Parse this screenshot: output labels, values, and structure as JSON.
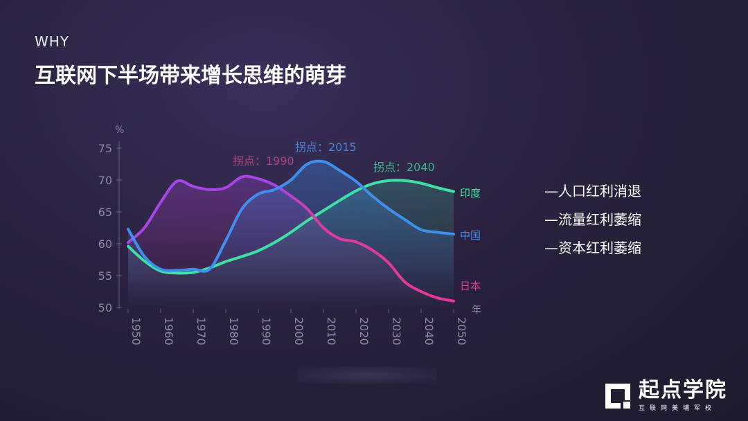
{
  "header": {
    "eyebrow": "WHY",
    "title": "互联网下半场带来增长思维的萌芽"
  },
  "bullets": [
    "—人口红利消退",
    "—流量红利萎缩",
    "—资本红利萎缩"
  ],
  "logo": {
    "main": "起点学院",
    "sub": "互联网美埔军校"
  },
  "colors": {
    "india": "#3fe0a5",
    "china": "#3f8fee",
    "japan": "#e13a9a",
    "japan_bump": "#a845e6",
    "axis": "#8d8aa6"
  },
  "chart_data": {
    "type": "line",
    "y_unit_label": "%",
    "x_unit_label": "年",
    "xlim": [
      1950,
      2050
    ],
    "ylim": [
      50,
      75
    ],
    "x_ticks": [
      "1950",
      "1960",
      "1970",
      "1980",
      "1990",
      "2000",
      "2010",
      "2020",
      "2030",
      "2040",
      "2050"
    ],
    "y_ticks": [
      "75",
      "70",
      "65",
      "60",
      "55",
      "50"
    ],
    "series": [
      {
        "name": "日本",
        "color": "#e13a9a",
        "x": [
          1950,
          1955,
          1960,
          1965,
          1970,
          1975,
          1980,
          1985,
          1990,
          1995,
          2000,
          2005,
          2010,
          2015,
          2020,
          2025,
          2030,
          2035,
          2040,
          2045,
          2050
        ],
        "y": [
          60.2,
          62.5,
          66.5,
          69.8,
          69.0,
          68.5,
          68.8,
          70.5,
          70.2,
          69.2,
          67.5,
          65.5,
          62.5,
          60.8,
          60.3,
          59.0,
          57.0,
          54.0,
          52.5,
          51.5,
          51.0
        ]
      },
      {
        "name": "中国",
        "color": "#3f8fee",
        "x": [
          1950,
          1955,
          1960,
          1965,
          1970,
          1975,
          1980,
          1985,
          1990,
          1995,
          2000,
          2005,
          2010,
          2015,
          2020,
          2025,
          2030,
          2035,
          2040,
          2045,
          2050
        ],
        "y": [
          62.3,
          58.0,
          56.0,
          55.8,
          56.0,
          56.0,
          60.5,
          65.5,
          67.8,
          68.5,
          70.0,
          72.5,
          72.9,
          71.5,
          69.8,
          67.5,
          65.5,
          63.8,
          62.2,
          61.8,
          61.5
        ]
      },
      {
        "name": "印度",
        "color": "#3fe0a5",
        "x": [
          1950,
          1955,
          1960,
          1965,
          1970,
          1975,
          1980,
          1985,
          1990,
          1995,
          2000,
          2005,
          2010,
          2015,
          2020,
          2025,
          2030,
          2035,
          2040,
          2045,
          2050
        ],
        "y": [
          59.6,
          57.3,
          55.7,
          55.4,
          55.5,
          56.2,
          57.2,
          58.0,
          58.9,
          60.2,
          61.8,
          63.6,
          65.2,
          66.8,
          68.3,
          69.4,
          69.9,
          69.9,
          69.5,
          68.8,
          68.2
        ]
      }
    ],
    "annotations": [
      {
        "text": "拐点：1990",
        "color": "#a8477e"
      },
      {
        "text": "拐点：2015",
        "color": "#4a86d8"
      },
      {
        "text": "拐点：2040",
        "color": "#3fb889"
      }
    ]
  }
}
